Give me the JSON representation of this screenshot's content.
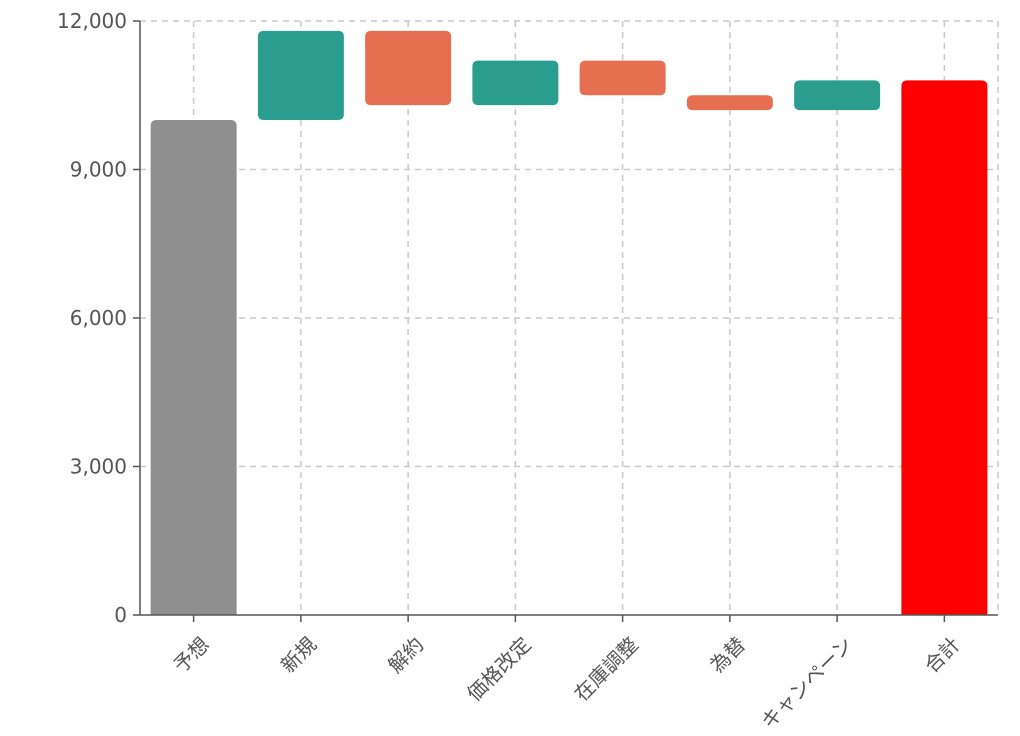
{
  "chart_data": {
    "type": "bar",
    "subtype": "waterfall",
    "title": "",
    "xlabel": "",
    "ylabel": "",
    "ylim": [
      0,
      12000
    ],
    "yticks": [
      0,
      3000,
      6000,
      9000,
      12000
    ],
    "ytick_labels": [
      "0",
      "3,000",
      "6,000",
      "9,000",
      "12,000"
    ],
    "grid": true,
    "categories": [
      "予想",
      "新規",
      "解約",
      "価格改定",
      "在庫調整",
      "為替",
      "キャンペーン",
      "合計"
    ],
    "values": [
      10000,
      1800,
      -1500,
      900,
      -700,
      -300,
      600,
      10800
    ],
    "bar_kinds": [
      "total",
      "increase",
      "decrease",
      "increase",
      "decrease",
      "decrease",
      "increase",
      "total"
    ],
    "colors": {
      "start": "#8f8f8f",
      "increase": "#2a9d8f",
      "decrease": "#e76f51",
      "total": "#ff0000"
    }
  }
}
